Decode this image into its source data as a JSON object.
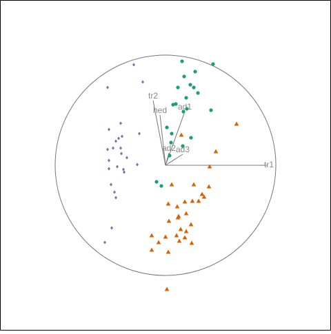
{
  "chart_data": {
    "type": "biplot",
    "xlim": [
      -240,
      240
    ],
    "ylim": [
      -240,
      240
    ],
    "series": [
      {
        "marker": "circle",
        "color": "#1b9e77",
        "x": [
          24,
          69,
          43,
          27,
          36,
          41,
          18,
          47,
          30,
          11,
          15,
          66,
          31,
          26,
          2,
          9,
          37,
          25,
          8,
          6,
          -13,
          -6
        ],
        "y": [
          151,
          147,
          136,
          129,
          117,
          113,
          113,
          105,
          98,
          88,
          89,
          80,
          82,
          78,
          55,
          46,
          40,
          28,
          33,
          14,
          -24,
          -30
        ]
      },
      {
        "marker": "triangle",
        "color": "#d95f02",
        "x": [
          103,
          23,
          73,
          64,
          9,
          41,
          63,
          53,
          28,
          48,
          39,
          4,
          17,
          56,
          30,
          5,
          19,
          18,
          37,
          22,
          30,
          -20,
          0,
          16,
          -10,
          28,
          38,
          20,
          -20,
          4,
          2
        ],
        "y": [
          60,
          44,
          20,
          -2,
          -28,
          -28,
          -31,
          -42,
          -53,
          -52,
          -52,
          -56,
          -60,
          -46,
          -70,
          -81,
          -74,
          -76,
          -86,
          -93,
          -96,
          -102,
          -104,
          -102,
          -112,
          -105,
          -113,
          -110,
          -123,
          -126,
          -180
        ]
      },
      {
        "marker": "diamond",
        "color": "#7570b3",
        "x": [
          -46,
          -33,
          -84,
          -82,
          -65,
          -38,
          -63,
          -72,
          -68,
          -76,
          -65,
          -84,
          -64,
          -56,
          -82,
          -70,
          -61,
          -41,
          -82,
          -60,
          -79,
          -74,
          -72,
          -78,
          -88
        ],
        "y": [
          146,
          121,
          113,
          52,
          61,
          46,
          42,
          35,
          39,
          25,
          25,
          23,
          17,
          11,
          7,
          -2,
          -6,
          1,
          -5,
          -10,
          -28,
          -39,
          -47,
          -91,
          -112
        ]
      }
    ],
    "axes": [
      {
        "label": "tr1",
        "x": 148,
        "y": 0
      },
      {
        "label": "tr2",
        "x": -18,
        "y": 94
      },
      {
        "label": "hed",
        "x": -8,
        "y": 73
      },
      {
        "label": "ad1",
        "x": 28,
        "y": 78
      },
      {
        "label": "ad2",
        "x": 5,
        "y": 18
      },
      {
        "label": "ad3",
        "x": 25,
        "y": 16
      }
    ]
  }
}
